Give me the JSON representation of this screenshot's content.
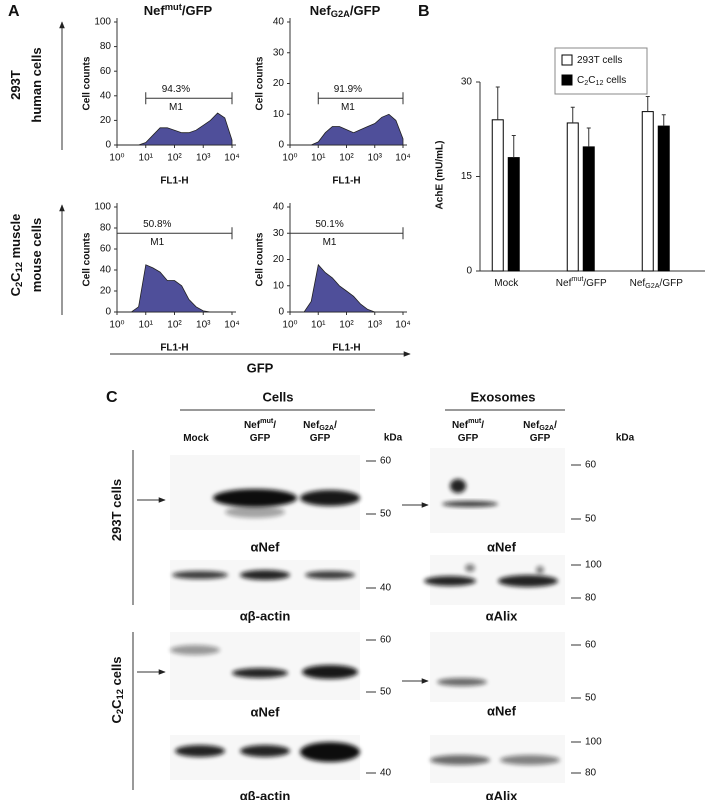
{
  "panel_a": {
    "label": "A",
    "columns": [
      {
        "text": [
          "Nef",
          "mut",
          "/GFP"
        ],
        "script": "super"
      },
      {
        "text": [
          "Nef",
          "G2A",
          "/GFP"
        ],
        "script": "sub"
      }
    ],
    "rows": [
      {
        "lines": [
          {
            "text": [
              "293T"
            ],
            "script": "sub"
          },
          {
            "text": [
              "human cells"
            ],
            "script": "sub"
          }
        ]
      },
      {
        "lines": [
          {
            "text": [
              "C",
              "2",
              "C",
              "12",
              " muscle"
            ],
            "script": "sub"
          },
          {
            "text": [
              "mouse cells"
            ],
            "script": "sub"
          }
        ]
      }
    ],
    "y_label": "Cell counts",
    "x_label": "FL1-H",
    "marker_label": "GFP",
    "log_x": true,
    "color": "#4f4f9a",
    "x": [
      1,
      1.78,
      3.16,
      5.62,
      10,
      17.8,
      31.6,
      56.2,
      100,
      178,
      316,
      562,
      1000,
      1780,
      3160,
      5620,
      10000
    ],
    "xlim": [
      1,
      10000
    ],
    "xticks": [
      {
        "value": 1,
        "label": "10⁰"
      },
      {
        "value": 10,
        "label": "10¹"
      },
      {
        "value": 100,
        "label": "10²"
      },
      {
        "value": 1000,
        "label": "10³"
      },
      {
        "value": 10000,
        "label": "10⁴"
      }
    ],
    "histograms": [
      {
        "ylim": [
          0,
          100
        ],
        "yticks": [
          0,
          20,
          40,
          60,
          80,
          100
        ],
        "values": [
          0,
          0,
          0,
          0,
          2,
          8,
          14,
          14,
          12,
          10,
          10,
          12,
          16,
          20,
          26,
          22,
          4
        ],
        "gate": [
          10,
          10000
        ],
        "gate_percent": "94.3%",
        "gate_name": "M1"
      },
      {
        "ylim": [
          0,
          40
        ],
        "yticks": [
          0,
          10,
          20,
          30,
          40
        ],
        "values": [
          0,
          0,
          0,
          0,
          1,
          4,
          6,
          6,
          5,
          4,
          5,
          6,
          7,
          9,
          10,
          8,
          2
        ],
        "gate": [
          10,
          10000
        ],
        "gate_percent": "91.9%",
        "gate_name": "M1"
      },
      {
        "ylim": [
          0,
          100
        ],
        "yticks": [
          0,
          20,
          40,
          60,
          80,
          100
        ],
        "values": [
          0,
          0,
          0,
          5,
          45,
          42,
          38,
          30,
          30,
          25,
          12,
          5,
          1,
          0,
          0,
          0,
          0
        ],
        "gate": [
          1,
          10000
        ],
        "gate_percent": "50.8%",
        "gate_name": "M1"
      },
      {
        "ylim": [
          0,
          40
        ],
        "yticks": [
          0,
          10,
          20,
          30,
          40
        ],
        "values": [
          0,
          0,
          0,
          4,
          18,
          15,
          13,
          10,
          8,
          6,
          3,
          1,
          0,
          0,
          0,
          0,
          0
        ],
        "gate": [
          1,
          10000
        ],
        "gate_percent": "50.1%",
        "gate_name": "M1"
      }
    ]
  },
  "panel_b": {
    "label": "B",
    "y_label": "AchE (mU/mL)",
    "categories": [
      {
        "text": [
          "Mock"
        ],
        "script": "super"
      },
      {
        "text": [
          "Nef",
          "mut",
          "/GFP"
        ],
        "script": "super"
      },
      {
        "text": [
          "Nef",
          "G2A",
          "/GFP"
        ],
        "script": "sub"
      }
    ],
    "ylim": [
      0,
      30
    ],
    "yticks": [
      0,
      15,
      30
    ],
    "series": [
      {
        "name": {
          "text": [
            "293T cells"
          ],
          "script": "sub"
        },
        "color": "#ffffff",
        "values": [
          24,
          23.5,
          25.3
        ],
        "errors": [
          5.2,
          2.5,
          2.4
        ]
      },
      {
        "name": {
          "text": [
            "C",
            "2",
            "C",
            "12",
            " cells"
          ],
          "script": "sub"
        },
        "color": "#000000",
        "values": [
          18,
          19.7,
          23
        ],
        "errors": [
          3.5,
          3,
          1.8
        ]
      }
    ]
  },
  "panel_c": {
    "label": "C",
    "groups": [
      "Cells",
      "Exosomes"
    ],
    "kda": "kDa",
    "cells_columns": [
      [
        {
          "text": [
            "Mock"
          ],
          "script": "super"
        }
      ],
      [
        {
          "text": [
            "Nef",
            "mut",
            "/"
          ],
          "script": "super"
        },
        {
          "text": [
            "GFP"
          ],
          "script": "super"
        }
      ],
      [
        {
          "text": [
            "Nef",
            "G2A",
            "/"
          ],
          "script": "sub"
        },
        {
          "text": [
            "GFP"
          ],
          "script": "sub"
        }
      ]
    ],
    "exo_columns": [
      [
        {
          "text": [
            "Nef",
            "mut",
            "/"
          ],
          "script": "super"
        },
        {
          "text": [
            "GFP"
          ],
          "script": "super"
        }
      ],
      [
        {
          "text": [
            "Nef",
            "G2A",
            "/"
          ],
          "script": "sub"
        },
        {
          "text": [
            "GFP"
          ],
          "script": "sub"
        }
      ]
    ],
    "rows": [
      {
        "name": {
          "text": [
            "293T cells"
          ],
          "script": "sub"
        },
        "blots": [
          {
            "antibody": "αNef",
            "markers": [
              60,
              50
            ]
          },
          {
            "antibody": "αβ-actin",
            "markers": [
              40
            ]
          },
          {
            "antibody": "αNef",
            "markers": [
              60,
              50
            ]
          },
          {
            "antibody": "αAlix",
            "markers": [
              100,
              80
            ]
          }
        ]
      },
      {
        "name": {
          "text": [
            "C",
            "2",
            "C",
            "12",
            " cells"
          ],
          "script": "sub"
        },
        "blots": [
          {
            "antibody": "αNef",
            "markers": [
              60,
              50
            ]
          },
          {
            "antibody": "αβ-actin",
            "markers": [
              40
            ]
          },
          {
            "antibody": "αNef",
            "markers": [
              60,
              50
            ]
          },
          {
            "antibody": "αAlix",
            "markers": [
              100,
              80
            ]
          }
        ]
      }
    ]
  }
}
